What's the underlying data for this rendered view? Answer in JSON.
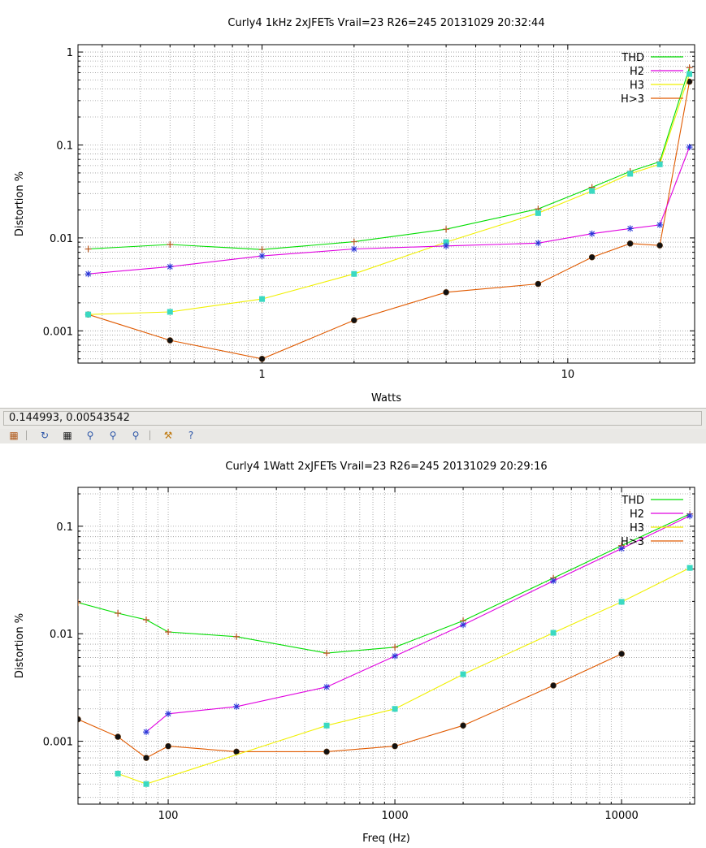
{
  "toolbar": {
    "coordinates": "0.144993,  0.00543542",
    "icons": [
      "export-icon",
      "replot-icon",
      "grid-icon",
      "zoom-previous-icon",
      "zoom-next-icon",
      "zoom-unzoom-icon",
      "settings-icon",
      "help-icon"
    ]
  },
  "chart_data": [
    {
      "type": "line",
      "title": "Curly4 1kHz 2xJFETs Vrail=23 R26=245 20131029 20:32:44",
      "xlabel": "Watts",
      "ylabel": "Distortion %",
      "xscale": "log",
      "yscale": "log",
      "xlim": [
        0.25,
        26
      ],
      "ylim": [
        0.00045,
        1.2
      ],
      "xticks": [
        {
          "value": 1,
          "label": "1"
        },
        {
          "value": 10,
          "label": "10"
        }
      ],
      "yticks": [
        {
          "value": 0.001,
          "label": "0.001"
        },
        {
          "value": 0.01,
          "label": "0.01"
        },
        {
          "value": 0.1,
          "label": "0.1"
        },
        {
          "value": 1,
          "label": "1"
        }
      ],
      "grid": true,
      "legend_position": "top-right",
      "series": [
        {
          "name": "THD",
          "color": "#00dd00",
          "marker": "plus",
          "marker_color": "#b8551f",
          "x": [
            0.27,
            0.5,
            1,
            2,
            4,
            8,
            12,
            16,
            20,
            25
          ],
          "y": [
            0.0076,
            0.0085,
            0.0075,
            0.0091,
            0.0124,
            0.0205,
            0.035,
            0.052,
            0.066,
            0.68
          ]
        },
        {
          "name": "H2",
          "color": "#e000e0",
          "marker": "star",
          "marker_color": "#2a36d8",
          "x": [
            0.27,
            0.5,
            1,
            2,
            4,
            8,
            12,
            16,
            20,
            25
          ],
          "y": [
            0.0041,
            0.0049,
            0.0064,
            0.0076,
            0.0082,
            0.0088,
            0.0111,
            0.0126,
            0.0138,
            0.095
          ]
        },
        {
          "name": "H3",
          "color": "#f0f000",
          "marker": "square",
          "marker_color": "#3ad9c2",
          "x": [
            0.27,
            0.5,
            1,
            2,
            4,
            8,
            12,
            16,
            20,
            25
          ],
          "y": [
            0.0015,
            0.0016,
            0.0022,
            0.0041,
            0.009,
            0.0185,
            0.032,
            0.049,
            0.062,
            0.58
          ]
        },
        {
          "name": "H>3",
          "color": "#e05a00",
          "marker": "circle",
          "marker_color": "#111111",
          "x": [
            0.27,
            0.5,
            1,
            2,
            4,
            8,
            12,
            16,
            20,
            25
          ],
          "y": [
            0.0015,
            0.00079,
            0.0005,
            0.0013,
            0.0026,
            0.0032,
            0.0062,
            0.0087,
            0.0083,
            0.48
          ]
        }
      ]
    },
    {
      "type": "line",
      "title": "Curly4 1Watt 2xJFETs Vrail=23 R26=245 20131029 20:29:16",
      "xlabel": "Freq (Hz)",
      "ylabel": "Distortion %",
      "xscale": "log",
      "yscale": "log",
      "xlim": [
        40,
        21000
      ],
      "ylim": [
        0.00026,
        0.23
      ],
      "xticks": [
        {
          "value": 100,
          "label": "100"
        },
        {
          "value": 1000,
          "label": "1000"
        },
        {
          "value": 10000,
          "label": "10000"
        }
      ],
      "yticks": [
        {
          "value": 0.001,
          "label": "0.001"
        },
        {
          "value": 0.01,
          "label": "0.01"
        },
        {
          "value": 0.1,
          "label": "0.1"
        }
      ],
      "grid": true,
      "legend_position": "top-right",
      "series": [
        {
          "name": "THD",
          "color": "#00dd00",
          "marker": "plus",
          "marker_color": "#b8551f",
          "x": [
            40,
            60,
            80,
            100,
            200,
            500,
            1000,
            2000,
            5000,
            10000,
            20000
          ],
          "y": [
            0.0195,
            0.0155,
            0.0135,
            0.0104,
            0.0094,
            0.0066,
            0.0075,
            0.0132,
            0.033,
            0.066,
            0.13
          ]
        },
        {
          "name": "H2",
          "color": "#e000e0",
          "marker": "star",
          "marker_color": "#2a36d8",
          "x": [
            80,
            100,
            200,
            500,
            1000,
            2000,
            5000,
            10000,
            20000
          ],
          "y": [
            0.00122,
            0.0018,
            0.0021,
            0.0032,
            0.0062,
            0.0121,
            0.031,
            0.062,
            0.125
          ]
        },
        {
          "name": "H3",
          "color": "#f0f000",
          "marker": "square",
          "marker_color": "#3ad9c2",
          "x": [
            60,
            80,
            500,
            1000,
            2000,
            5000,
            10000,
            20000
          ],
          "y": [
            0.0005,
            0.0004,
            0.0014,
            0.002,
            0.0042,
            0.0102,
            0.0198,
            0.041
          ]
        },
        {
          "name": "H>3",
          "color": "#e05a00",
          "marker": "circle",
          "marker_color": "#111111",
          "x": [
            40,
            60,
            80,
            100,
            200,
            500,
            1000,
            2000,
            5000,
            10000
          ],
          "y": [
            0.0016,
            0.0011,
            0.0007,
            0.0009,
            0.0008,
            0.0008,
            0.0009,
            0.0014,
            0.0033,
            0.0065
          ]
        }
      ]
    }
  ]
}
